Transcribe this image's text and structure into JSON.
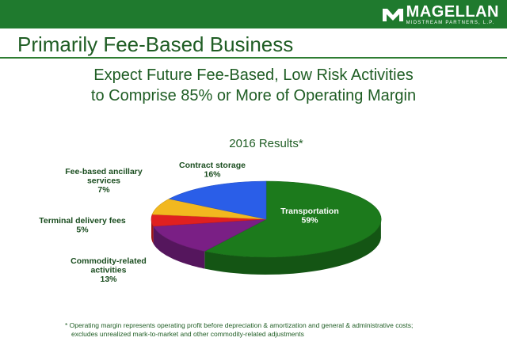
{
  "header": {
    "logo_name": "MAGELLAN",
    "logo_tagline": "MIDSTREAM PARTNERS, L.P.",
    "title": "Primarily Fee-Based Business"
  },
  "headline": {
    "line1": "Expect Future Fee-Based, Low Risk Activities",
    "line2": "to Comprise 85% or More of Operating Margin"
  },
  "footnote": {
    "line1": "* Operating margin represents operating profit before depreciation & amortization and general & administrative costs;",
    "line2": "excludes unrealized mark-to-market and other commodity-related adjustments"
  },
  "colors": {
    "brand_green": "#1f7a2e",
    "title_green": "#1f5d24",
    "label_green": "#1a4d1f"
  },
  "chart_data": {
    "type": "pie",
    "title": "2016 Results*",
    "unit": "%",
    "slices": [
      {
        "label": "Transportation",
        "value": 59,
        "display": "59%",
        "color": "#1c7a1c"
      },
      {
        "label": "Commodity-related activities",
        "value": 13,
        "display": "13%",
        "color": "#7a1f85"
      },
      {
        "label": "Terminal delivery fees",
        "value": 5,
        "display": "5%",
        "color": "#e02020"
      },
      {
        "label": "Fee-based ancillary services",
        "value": 7,
        "display": "7%",
        "color": "#f2b81f"
      },
      {
        "label": "Contract storage",
        "value": 16,
        "display": "16%",
        "color": "#2a5ee8"
      }
    ]
  }
}
